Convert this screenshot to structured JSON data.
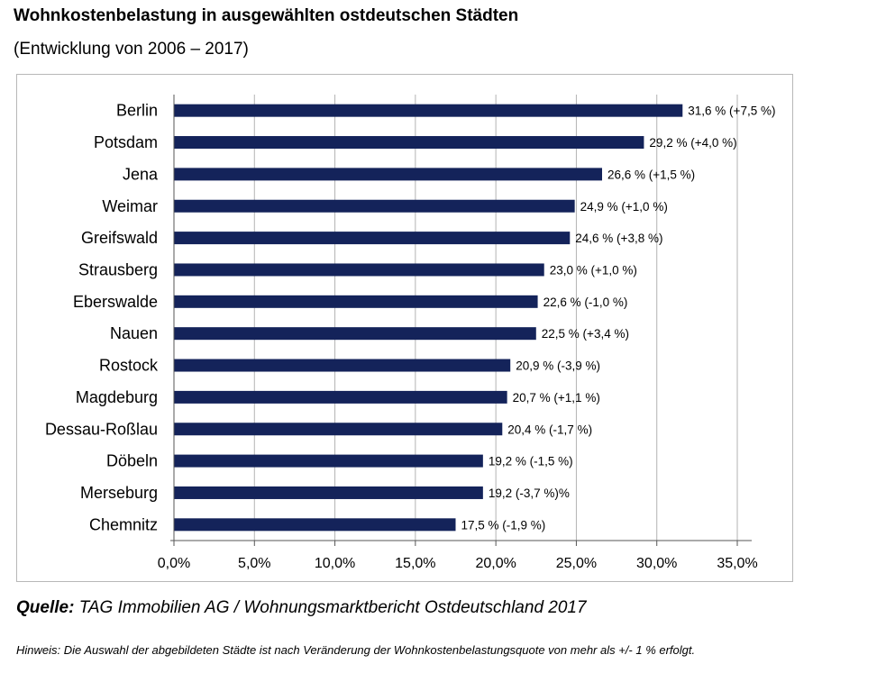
{
  "header": {
    "title": "Wohnkostenbelastung in ausgewählten ostdeutschen Städten",
    "subtitle": "(Entwicklung von 2006 – 2017)"
  },
  "chart_data": {
    "type": "bar",
    "orientation": "horizontal",
    "categories": [
      "Berlin",
      "Potsdam",
      "Jena",
      "Weimar",
      "Greifswald",
      "Strausberg",
      "Eberswalde",
      "Nauen",
      "Rostock",
      "Magdeburg",
      "Dessau-Roßlau",
      "Döbeln",
      "Merseburg",
      "Chemnitz"
    ],
    "values": [
      31.6,
      29.2,
      26.6,
      24.9,
      24.6,
      23.0,
      22.6,
      22.5,
      20.9,
      20.7,
      20.4,
      19.2,
      19.2,
      17.5
    ],
    "data_labels": [
      "31,6 % (+7,5 %)",
      "29,2 % (+4,0 %)",
      "26,6 % (+1,5 %)",
      "24,9 % (+1,0 %)",
      "24,6 % (+3,8 %)",
      "23,0 % (+1,0 %)",
      "22,6 % (-1,0 %)",
      "22,5 % (+3,4 %)",
      "20,9 % (-3,9 %)",
      "20,7 % (+1,1 %)",
      "20,4 % (-1,7 %)",
      "19,2 % (-1,5 %)",
      "19,2 (-3,7 %)%",
      "17,5 % (-1,9 %)"
    ],
    "xlim": [
      0,
      35
    ],
    "ticks": [
      0,
      5,
      10,
      15,
      20,
      25,
      30,
      35
    ],
    "tick_labels": [
      "0,0%",
      "5,0%",
      "10,0%",
      "15,0%",
      "20,0%",
      "25,0%",
      "30,0%",
      "35,0%"
    ],
    "grid": true,
    "bar_color": "#14235a",
    "grid_color": "#b3b3b3"
  },
  "footer": {
    "source_label": "Quelle:",
    "source_text": "TAG Immobilien AG / Wohnungsmarktbericht Ostdeutschland 2017",
    "note": "Hinweis: Die Auswahl der abgebildeten Städte ist nach Veränderung der Wohnkostenbelastungsquote von mehr als +/- 1 % erfolgt."
  }
}
